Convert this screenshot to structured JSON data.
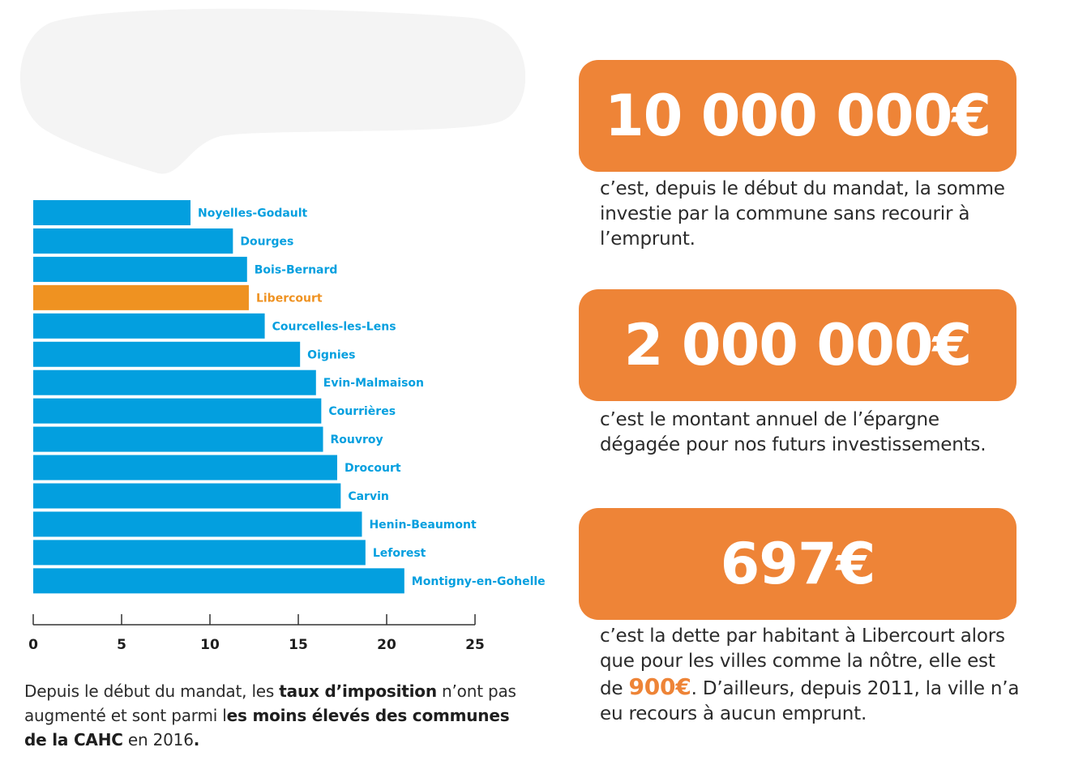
{
  "chart_data": {
    "type": "bar",
    "orientation": "horizontal",
    "categories": [
      "Noyelles-Godault",
      "Dourges",
      "Bois-Bernard",
      "Libercourt",
      "Courcelles-les-Lens",
      "Oignies",
      "Evin-Malmaison",
      "Courrières",
      "Rouvroy",
      "Drocourt",
      "Carvin",
      "Henin-Beaumont",
      "Leforest",
      "Montigny-en-Gohelle"
    ],
    "values": [
      8.9,
      11.3,
      12.1,
      12.2,
      13.1,
      15.1,
      16.0,
      16.3,
      16.4,
      17.2,
      17.4,
      18.6,
      18.8,
      21.0
    ],
    "highlight": "Libercourt",
    "xlim": [
      0,
      25
    ],
    "xticks": [
      "0",
      "5",
      "10",
      "15",
      "20",
      "25"
    ],
    "grid": false,
    "colors": {
      "bar": "#039fdf",
      "highlight": "#ef9221",
      "axis": "#333333"
    }
  },
  "caption": {
    "p1": "Depuis le début du mandat, les ",
    "b1": "taux d’imposition",
    "p2": " n’ont pas augmenté et sont parmi l",
    "b2": "es moins élevés des communes de la CAHC",
    "p3": " en 2016",
    "b3": "."
  },
  "stats": [
    {
      "value": "10 000 000€",
      "description": "c’est, depuis le début du mandat, la somme investie par la commune sans recourir à l’emprunt."
    },
    {
      "value": "2 000 000€",
      "description": "c’est le montant annuel de l’épargne dégagée pour nos futurs investissements."
    },
    {
      "value": "697€",
      "desc_before": "c’est la dette par habitant à Libercourt alors que pour les villes comme la nôtre, elle est de ",
      "highlight": "900€",
      "desc_after": ". D’ailleurs, depuis 2011, la ville n’a eu recours à aucun emprunt."
    }
  ],
  "colors": {
    "accent": "#ee8437",
    "redacted": "#f4f4f4"
  }
}
